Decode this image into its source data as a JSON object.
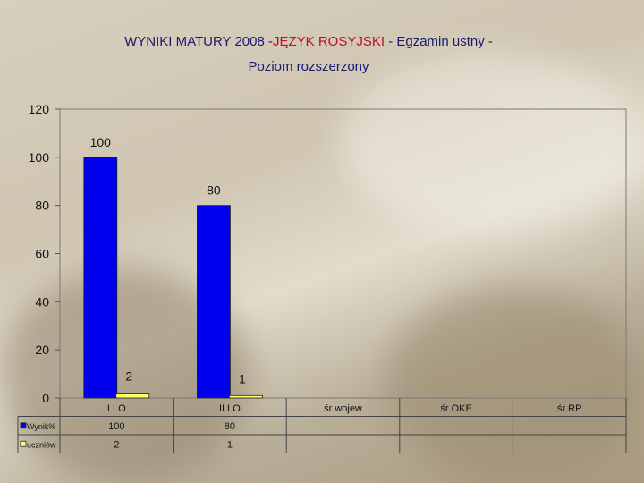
{
  "title": {
    "part1": "WYNIKI MATURY 2008 -",
    "part2": "JĘZYK ROSYJSKI",
    "part3": " - Egzamin ustny -",
    "line2": "Poziom rozszerzony"
  },
  "colors": {
    "series1": "#0000ee",
    "series2": "#ffff66",
    "title_main": "#1a1a70",
    "title_accent": "#c0101a"
  },
  "chart_data": {
    "type": "bar",
    "title": "WYNIKI MATURY 2008 - JĘZYK ROSYJSKI - Egzamin ustny - Poziom rozszerzony",
    "categories": [
      "I LO",
      "II LO",
      "śr  wojew",
      "śr  OKE",
      "śr  RP"
    ],
    "series": [
      {
        "name": "Wynik%",
        "values": [
          100,
          80,
          null,
          null,
          null
        ],
        "labels": [
          "100",
          "80",
          "",
          "",
          ""
        ]
      },
      {
        "name": "uczniów",
        "values": [
          2,
          1,
          null,
          null,
          null
        ],
        "labels": [
          "2",
          "1",
          "",
          "",
          ""
        ]
      }
    ],
    "ylim": [
      0,
      120
    ],
    "yticks": [
      "0",
      "20",
      "40",
      "60",
      "80",
      "100",
      "120"
    ],
    "legend": "data-table-below",
    "grid": false
  }
}
